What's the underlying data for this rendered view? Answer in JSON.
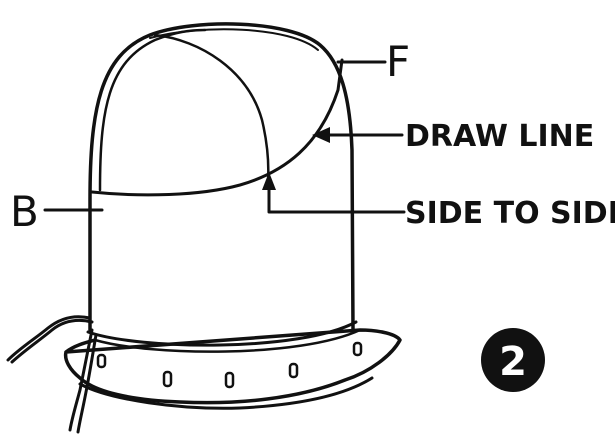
{
  "labels": {
    "f": "F",
    "draw_line": "DRAW LINE",
    "side_to_side": "SIDE TO SIDE",
    "b": "B"
  },
  "step_number": "2",
  "colors": {
    "ink": "#111111",
    "paper": "#ffffff"
  }
}
